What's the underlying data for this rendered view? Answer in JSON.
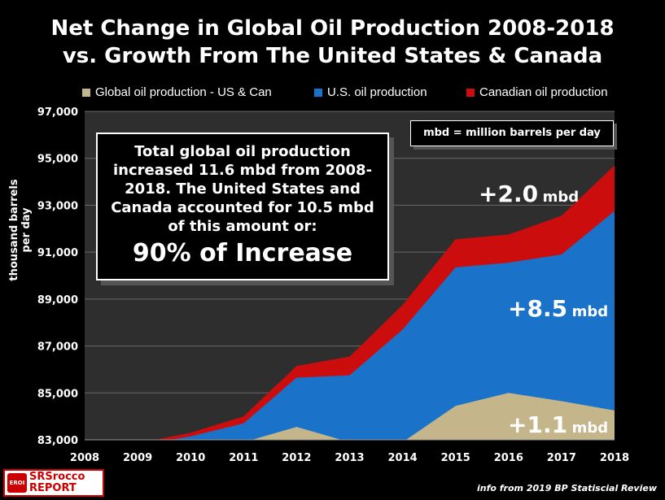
{
  "chart_data": {
    "type": "area",
    "title": "Net Change in Global Oil Production 2008-2018",
    "subtitle": "vs. Growth From The United States & Canada",
    "ylabel": "thousand barrels per day",
    "xlabel": "",
    "x": [
      "2008",
      "2009",
      "2010",
      "2011",
      "2012",
      "2013",
      "2014",
      "2015",
      "2016",
      "2017",
      "2018"
    ],
    "ylim": [
      83000,
      97000
    ],
    "yticks": [
      "83,000",
      "85,000",
      "87,000",
      "89,000",
      "91,000",
      "93,000",
      "95,000",
      "97,000"
    ],
    "ytick_values": [
      83000,
      85000,
      87000,
      89000,
      91000,
      93000,
      95000,
      97000
    ],
    "legend_position": "top",
    "stacked": true,
    "series": [
      {
        "name": "Global oil production - US & Can",
        "color": "#c4b68a",
        "values": [
          82300,
          82600,
          82900,
          82900,
          83550,
          82900,
          82900,
          84450,
          85000,
          84650,
          84250
        ]
      },
      {
        "name": "U.S. oil production",
        "color": "#1a72c9",
        "values": [
          82500,
          82750,
          83150,
          83700,
          85650,
          85750,
          87700,
          90350,
          90550,
          90900,
          92750
        ]
      },
      {
        "name": "Canadian oil production",
        "color": "#cc0d0d",
        "values": [
          82500,
          82850,
          83300,
          84000,
          86150,
          86550,
          88750,
          91550,
          91750,
          92550,
          94700
        ]
      }
    ],
    "annotations": [
      {
        "value": "+2.0",
        "unit": "mbd"
      },
      {
        "value": "+8.5",
        "unit": "mbd"
      },
      {
        "value": "+1.1",
        "unit": "mbd"
      }
    ],
    "grid": true
  },
  "text": {
    "title_line1": "Net Change in Global Oil Production 2008-2018",
    "title_line2": "vs. Growth From The United States & Canada",
    "callout": "Total global oil production increased 11.6 mbd from 2008-2018.  The United States and Canada accounted for 10.5 mbd of this amount or:",
    "callout_big": "90% of Increase",
    "unit_note": "mbd = million barrels per day",
    "logo_name": "SRSrocco REPORT",
    "logo_badge": "EROI",
    "source": "info from 2019 BP Statiscial Review"
  }
}
